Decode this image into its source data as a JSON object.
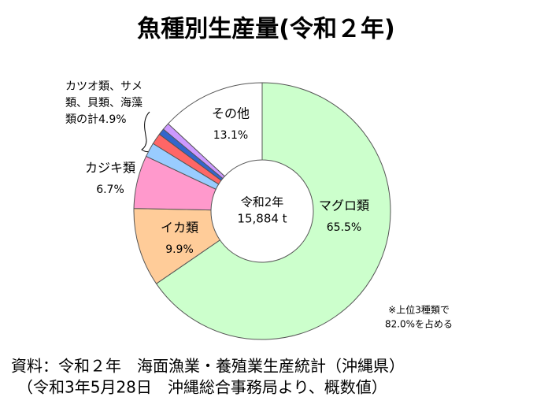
{
  "chart_data": {
    "type": "pie",
    "title": "魚種別生産量(令和２年)",
    "center_label": [
      "令和2年",
      "15,884 t"
    ],
    "categories": [
      "マグロ類",
      "イカ類",
      "カジキ類",
      null,
      null,
      null,
      null,
      "その他"
    ],
    "values": [
      65.5,
      9.9,
      6.7,
      1.8,
      1.4,
      0.8,
      0.9,
      13.1
    ],
    "value_labels": [
      "65.5%",
      "9.9%",
      "6.7%",
      null,
      null,
      null,
      null,
      "13.1%"
    ],
    "colors": [
      "#ccffcc",
      "#ffcc99",
      "#ff99cc",
      "#99ccff",
      "#ff6666",
      "#3366cc",
      "#cc99ff",
      "#ffffff"
    ],
    "group_label": [
      "カツオ類、サメ",
      "類、貝類、海藻",
      "類の計4.9%"
    ],
    "note": [
      "※上位3種類で",
      "82.0%を占める"
    ],
    "source": [
      "資料：令和２年　海面漁業・養殖業生産統計（沖縄県）",
      "（令和3年5月28日　沖縄総合事務局より、概数値）"
    ]
  }
}
